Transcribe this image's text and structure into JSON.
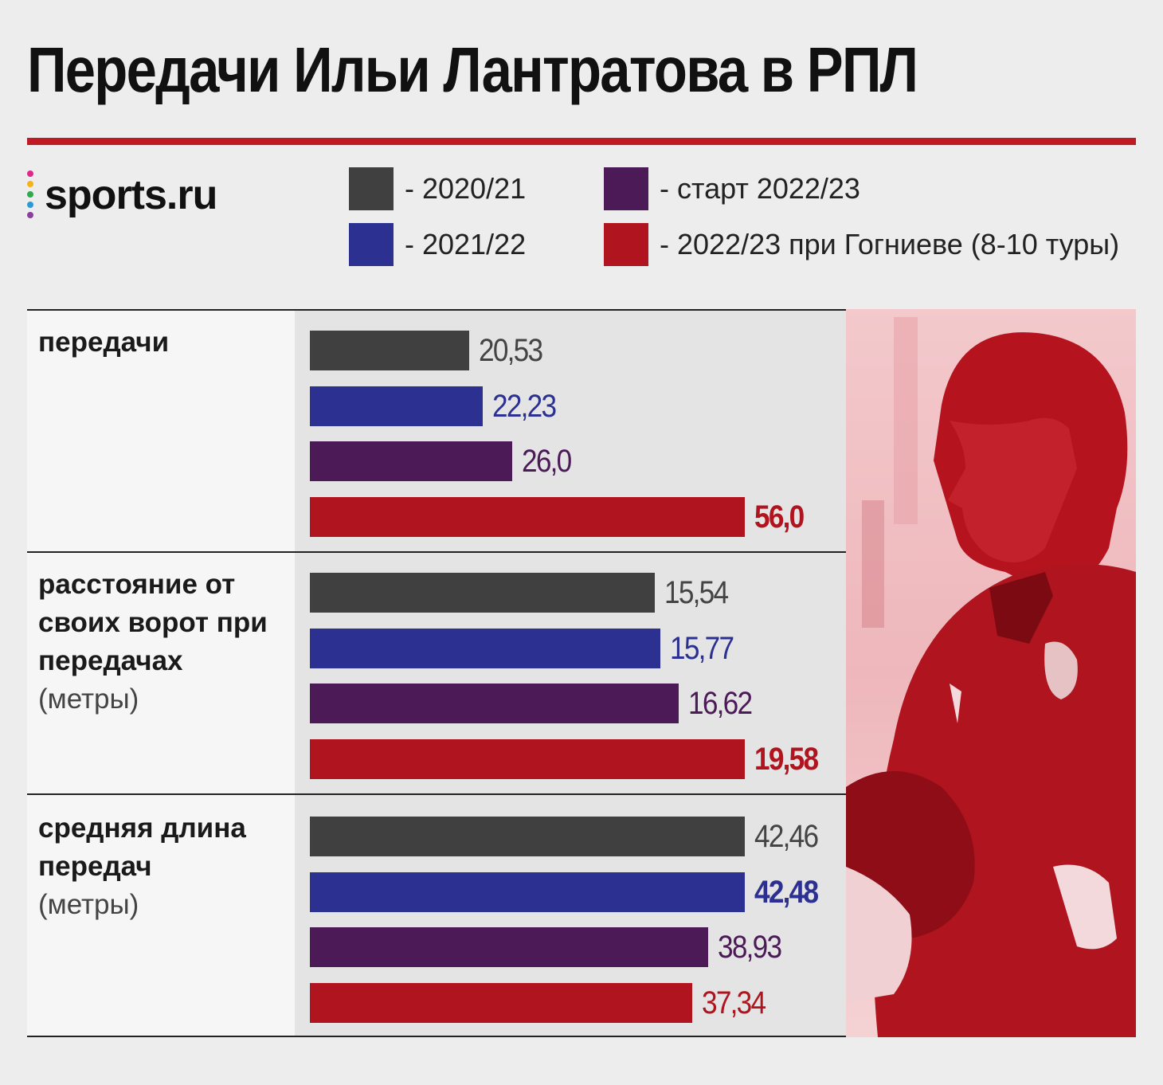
{
  "title": "Передачи Ильи Лантратова в РПЛ",
  "logo": {
    "text": "sports.ru"
  },
  "legend": [
    {
      "label": "- 2020/21",
      "color": "#404040"
    },
    {
      "label": "- 2021/22",
      "color": "#2c3191"
    },
    {
      "label": "- старт 2022/23",
      "color": "#4b1a57"
    },
    {
      "label": "- 2022/23 при Гогниеве (8-10 туры)",
      "color": "#b0141e"
    }
  ],
  "chart_data": {
    "type": "bar",
    "orientation": "horizontal",
    "series_names": [
      "- 2020/21",
      "- 2021/22",
      "- старт 2022/23",
      "- 2022/23 при Гогниеве (8-10 туры)"
    ],
    "colors": [
      "#404040",
      "#2c3191",
      "#4b1a57",
      "#b0141e"
    ],
    "groups": [
      {
        "label": "передачи",
        "unit": "",
        "values": [
          20.53,
          22.23,
          26.0,
          56.0
        ],
        "labels": [
          "20,53",
          "22,23",
          "26,0",
          "56,0"
        ],
        "bold_index": 3,
        "max": 56.0
      },
      {
        "label": "расстояние от своих ворот при передачах",
        "unit": "(метры)",
        "values": [
          15.54,
          15.77,
          16.62,
          19.58
        ],
        "labels": [
          "15,54",
          "15,77",
          "16,62",
          "19,58"
        ],
        "bold_index": 3,
        "max": 19.58
      },
      {
        "label": "средняя длина передач",
        "unit": "(метры)",
        "values": [
          42.46,
          42.48,
          38.93,
          37.34
        ],
        "labels": [
          "42,46",
          "42,48",
          "38,93",
          "37,34"
        ],
        "bold_index": 1,
        "max": 42.48
      }
    ]
  }
}
